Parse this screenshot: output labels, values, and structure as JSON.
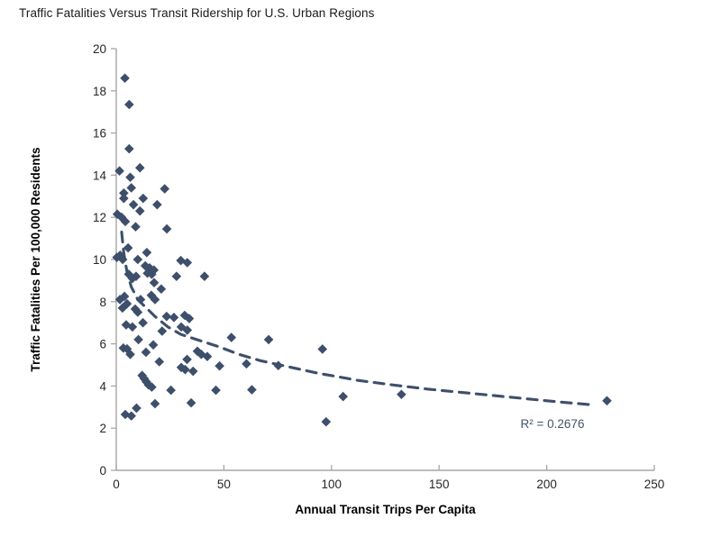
{
  "title": "Traffic Fatalities Versus Transit Ridership for U.S. Urban Regions",
  "chart_data": {
    "type": "scatter",
    "title": "Traffic Fatalities Versus Transit Ridership for U.S. Urban Regions",
    "xlabel": "Annual Transit Trips Per Capita",
    "ylabel": "Traffic Fatalities Per 100,000 Residents",
    "xlim": [
      0,
      250
    ],
    "ylim": [
      0,
      20
    ],
    "xticks": [
      0,
      50,
      100,
      150,
      200,
      250
    ],
    "yticks": [
      0,
      2,
      4,
      6,
      8,
      10,
      12,
      14,
      16,
      18,
      20
    ],
    "grid": false,
    "legend": "none",
    "marker_shape": "diamond",
    "points": [
      [
        4,
        18.6
      ],
      [
        6,
        17.35
      ],
      [
        6,
        15.25
      ],
      [
        1.5,
        14.2
      ],
      [
        11,
        14.35
      ],
      [
        6.5,
        13.9
      ],
      [
        7,
        13.4
      ],
      [
        22.5,
        13.35
      ],
      [
        3.5,
        13.15
      ],
      [
        3.5,
        12.9
      ],
      [
        12.5,
        12.9
      ],
      [
        8,
        12.6
      ],
      [
        19,
        12.6
      ],
      [
        11,
        12.3
      ],
      [
        0.5,
        12.15
      ],
      [
        2.5,
        12.0
      ],
      [
        4.2,
        11.8
      ],
      [
        9,
        11.55
      ],
      [
        23.5,
        11.45
      ],
      [
        5.5,
        10.55
      ],
      [
        14.2,
        10.33
      ],
      [
        0.3,
        10.1
      ],
      [
        1.8,
        10.2
      ],
      [
        3,
        10.0
      ],
      [
        10,
        10.0
      ],
      [
        30,
        9.95
      ],
      [
        33,
        9.85
      ],
      [
        13.5,
        9.7
      ],
      [
        15.5,
        9.6
      ],
      [
        17.5,
        9.5
      ],
      [
        14.5,
        9.35
      ],
      [
        16.5,
        9.3
      ],
      [
        28,
        9.2
      ],
      [
        41,
        9.2
      ],
      [
        5.8,
        9.3
      ],
      [
        9.2,
        9.2
      ],
      [
        7.5,
        9.1
      ],
      [
        17.6,
        8.9
      ],
      [
        20.9,
        8.6
      ],
      [
        1.7,
        8.1
      ],
      [
        3.8,
        8.25
      ],
      [
        5,
        7.9
      ],
      [
        8.8,
        7.65
      ],
      [
        10,
        7.5
      ],
      [
        11.3,
        8.1
      ],
      [
        16.3,
        8.3
      ],
      [
        18,
        8.1
      ],
      [
        2.9,
        7.7
      ],
      [
        23.4,
        7.3
      ],
      [
        26.8,
        7.25
      ],
      [
        31.8,
        7.35
      ],
      [
        33.9,
        7.2
      ],
      [
        12.4,
        7.0
      ],
      [
        4.6,
        6.9
      ],
      [
        7.5,
        6.8
      ],
      [
        21.3,
        6.6
      ],
      [
        30.2,
        6.8
      ],
      [
        33,
        6.65
      ],
      [
        10.3,
        6.2
      ],
      [
        53.5,
        6.3
      ],
      [
        70.8,
        6.2
      ],
      [
        3.3,
        5.8
      ],
      [
        5,
        5.76
      ],
      [
        6.5,
        5.5
      ],
      [
        13.8,
        5.6
      ],
      [
        17.2,
        5.95
      ],
      [
        37.7,
        5.65
      ],
      [
        39.5,
        5.5
      ],
      [
        42.3,
        5.4
      ],
      [
        95.8,
        5.75
      ],
      [
        20,
        5.15
      ],
      [
        32.9,
        5.26
      ],
      [
        60.5,
        5.05
      ],
      [
        75.3,
        4.97
      ],
      [
        30.2,
        4.88
      ],
      [
        32,
        4.78
      ],
      [
        35.7,
        4.7
      ],
      [
        48,
        4.95
      ],
      [
        12,
        4.5
      ],
      [
        13,
        4.35
      ],
      [
        14,
        4.2
      ],
      [
        15,
        4.05
      ],
      [
        16.5,
        3.95
      ],
      [
        25.4,
        3.8
      ],
      [
        46.3,
        3.8
      ],
      [
        63,
        3.82
      ],
      [
        105.4,
        3.5
      ],
      [
        132.5,
        3.6
      ],
      [
        18,
        3.16
      ],
      [
        34.8,
        3.2
      ],
      [
        228,
        3.3
      ],
      [
        4.2,
        2.65
      ],
      [
        7,
        2.58
      ],
      [
        9.4,
        2.95
      ],
      [
        97.5,
        2.3
      ]
    ],
    "trendline": {
      "style": "dashed",
      "label": "R² = 0.2676",
      "samples": [
        [
          2.5,
          11.3
        ],
        [
          3.5,
          10.3
        ],
        [
          5,
          9.4
        ],
        [
          7,
          8.7
        ],
        [
          10,
          8.1
        ],
        [
          14,
          7.7
        ],
        [
          18,
          7.3
        ],
        [
          24,
          6.8
        ],
        [
          30,
          6.45
        ],
        [
          39,
          6.15
        ],
        [
          48,
          5.85
        ],
        [
          57,
          5.5
        ],
        [
          67,
          5.2
        ],
        [
          76,
          5.0
        ],
        [
          85,
          4.8
        ],
        [
          94,
          4.6
        ],
        [
          103,
          4.44
        ],
        [
          112,
          4.27
        ],
        [
          121,
          4.15
        ],
        [
          130,
          4.03
        ],
        [
          145,
          3.85
        ],
        [
          160,
          3.7
        ],
        [
          175,
          3.55
        ],
        [
          190,
          3.4
        ],
        [
          205,
          3.25
        ],
        [
          222,
          3.1
        ]
      ]
    },
    "colors": {
      "marker": "#3E4F6B",
      "trendline": "#3E4F6B",
      "r2_text": "#44546A",
      "axis": "#A6A6A6",
      "tick_text": "#262626",
      "axis_title_text": "#000000"
    }
  }
}
